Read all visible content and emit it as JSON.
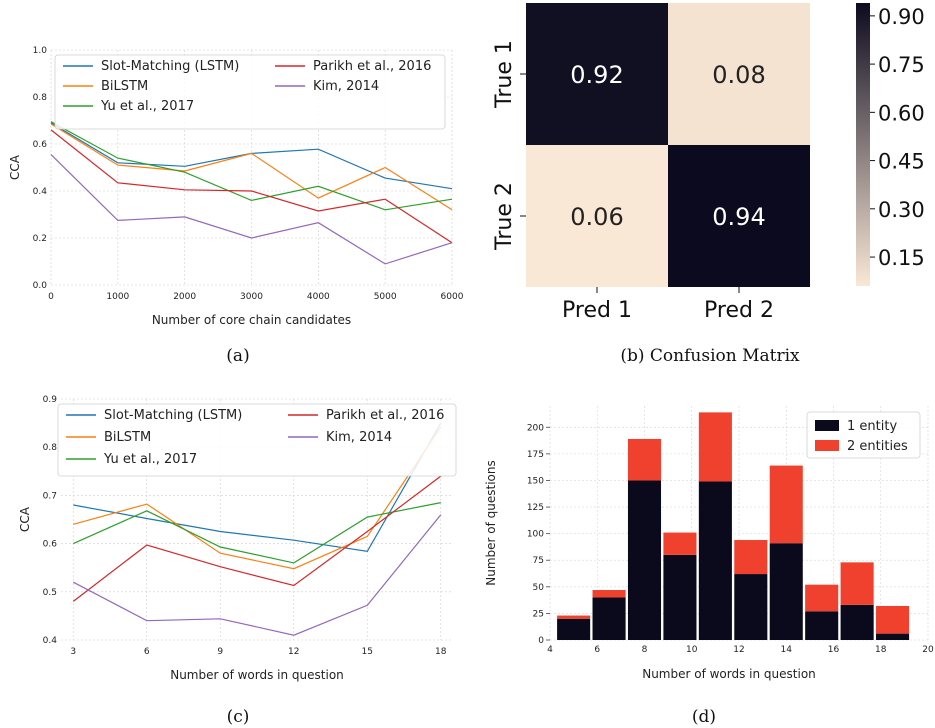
{
  "chart_data": [
    {
      "type": "line",
      "caption": "(a)",
      "xlabel": "Number of core chain candidates",
      "ylabel": "CCA",
      "xlim": [
        0,
        6000
      ],
      "ylim": [
        0.0,
        1.0
      ],
      "xticks": [
        "0",
        "1000",
        "2000",
        "3000",
        "4000",
        "5000",
        "6000"
      ],
      "yticks": [
        "0.0",
        "0.2",
        "0.4",
        "0.6",
        "0.8",
        "1.0"
      ],
      "x": [
        0,
        1000,
        2000,
        3000,
        4000,
        5000,
        6000
      ],
      "grid": true,
      "legend_position": "top",
      "series": [
        {
          "name": "Slot-Matching (LSTM)",
          "color": "#1f77b4",
          "values": [
            0.69,
            0.52,
            0.505,
            0.56,
            0.578,
            0.455,
            0.41
          ]
        },
        {
          "name": "BiLSTM",
          "color": "#ff7f0e",
          "values": [
            0.685,
            0.51,
            0.485,
            0.56,
            0.37,
            0.5,
            0.32
          ]
        },
        {
          "name": "Yu et al., 2017",
          "color": "#2ca02c",
          "values": [
            0.695,
            0.54,
            0.48,
            0.36,
            0.42,
            0.32,
            0.365
          ]
        },
        {
          "name": "Parikh et al., 2016",
          "color": "#d62728",
          "values": [
            0.66,
            0.435,
            0.405,
            0.4,
            0.315,
            0.365,
            0.18
          ]
        },
        {
          "name": "Kim, 2014",
          "color": "#9467bd",
          "values": [
            0.555,
            0.275,
            0.29,
            0.2,
            0.265,
            0.09,
            0.18
          ]
        }
      ]
    },
    {
      "type": "heatmap",
      "caption": "(b) Confusion Matrix",
      "rows": [
        "True 1",
        "True 2"
      ],
      "cols": [
        "Pred 1",
        "Pred 2"
      ],
      "values": [
        [
          0.92,
          0.08
        ],
        [
          0.06,
          0.94
        ]
      ],
      "colorbar_ticks": [
        "0.90",
        "0.75",
        "0.60",
        "0.45",
        "0.30",
        "0.15"
      ],
      "colorbar_range": [
        0.06,
        0.94
      ]
    },
    {
      "type": "line",
      "caption": "(c)",
      "xlabel": "Number of words in question",
      "ylabel": "CCA",
      "xlim": [
        2.5,
        18.5
      ],
      "ylim": [
        0.4,
        0.9
      ],
      "xticks": [
        "3",
        "6",
        "9",
        "12",
        "15",
        "18"
      ],
      "yticks": [
        "0.4",
        "0.5",
        "0.6",
        "0.7",
        "0.8",
        "0.9"
      ],
      "x": [
        3,
        6,
        9,
        12,
        15,
        18
      ],
      "grid": true,
      "legend_position": "top",
      "series": [
        {
          "name": "Slot-Matching (LSTM)",
          "color": "#1f77b4",
          "values": [
            0.68,
            0.652,
            0.625,
            0.607,
            0.584,
            0.85
          ]
        },
        {
          "name": "BiLSTM",
          "color": "#ff7f0e",
          "values": [
            0.64,
            0.682,
            0.58,
            0.548,
            0.615,
            0.842
          ]
        },
        {
          "name": "Yu et al., 2017",
          "color": "#2ca02c",
          "values": [
            0.6,
            0.668,
            0.593,
            0.56,
            0.655,
            0.685
          ]
        },
        {
          "name": "Parikh et al., 2016",
          "color": "#d62728",
          "values": [
            0.48,
            0.597,
            0.552,
            0.513,
            0.625,
            0.74
          ]
        },
        {
          "name": "Kim, 2014",
          "color": "#9467bd",
          "values": [
            0.52,
            0.44,
            0.444,
            0.41,
            0.472,
            0.66
          ]
        }
      ]
    },
    {
      "type": "bar",
      "stacked": true,
      "caption": "(d)",
      "xlabel": "Number of words in question",
      "ylabel": "Number of questions",
      "xlim": [
        4,
        20
      ],
      "ylim": [
        0,
        220
      ],
      "xticks": [
        "4",
        "6",
        "8",
        "10",
        "12",
        "14",
        "16",
        "18",
        "20"
      ],
      "yticks": [
        "0",
        "25",
        "50",
        "75",
        "100",
        "125",
        "150",
        "175",
        "200"
      ],
      "x": [
        5,
        6.5,
        8,
        9.5,
        11,
        12.5,
        14,
        15.5,
        17,
        18.5
      ],
      "legend_position": "top-right",
      "series": [
        {
          "name": "1 entity",
          "color": "#0b0a1c",
          "values": [
            20,
            40,
            150,
            80,
            149,
            62,
            91,
            27,
            33,
            6
          ]
        },
        {
          "name": "2 entities",
          "color": "#f0412e",
          "values": [
            3,
            7,
            39,
            21,
            65,
            32,
            73,
            25,
            40,
            26
          ]
        }
      ]
    }
  ]
}
